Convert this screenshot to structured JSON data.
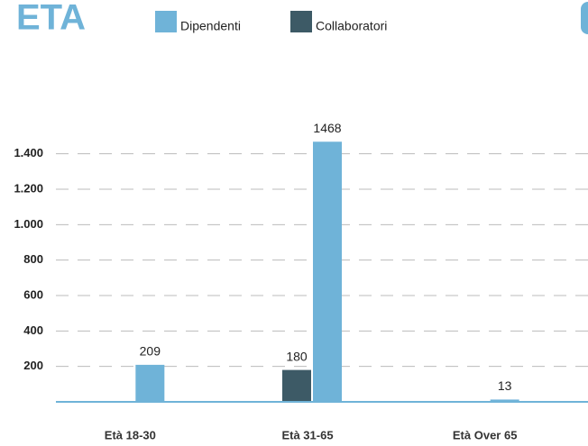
{
  "chart_data": {
    "type": "bar",
    "title": "ETA",
    "categories": [
      "Età 18-30",
      "Età 31-65",
      "Età  Over 65"
    ],
    "series": [
      {
        "name": "Collaboratori",
        "color": "#3d5a66",
        "values": [
          null,
          180,
          null
        ]
      },
      {
        "name": "Dipendenti",
        "color": "#6fb3d8",
        "values": [
          209,
          1468,
          13
        ]
      }
    ],
    "ylim": [
      0,
      1800
    ],
    "yticks": [
      200,
      400,
      600,
      800,
      {
        "value": 1000,
        "label": "1.000"
      },
      {
        "value": 1200,
        "label": "1.200"
      },
      {
        "value": 1400,
        "label": "1.400"
      }
    ],
    "grid": true
  }
}
